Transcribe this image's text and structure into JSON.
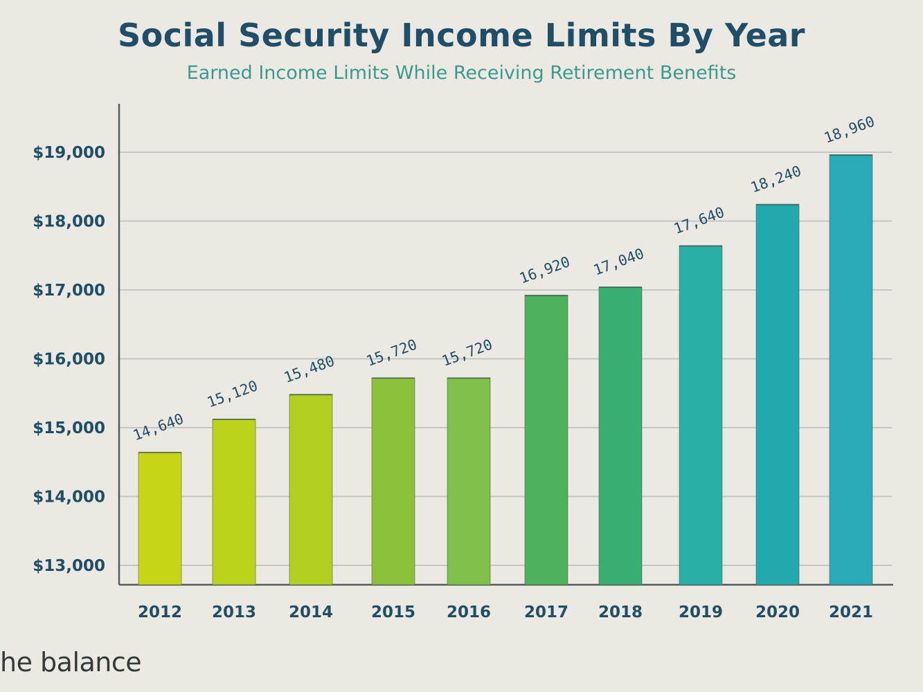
{
  "brand": "he balance",
  "chart_data": {
    "type": "bar",
    "title": "Social Security Income Limits By Year",
    "subtitle": "Earned Income Limits While Receiving Retirement Benefits",
    "xlabel": "",
    "ylabel": "",
    "categories": [
      "2012",
      "2013",
      "2014",
      "2015",
      "2016",
      "2017",
      "2018",
      "2019",
      "2020",
      "2021"
    ],
    "values": [
      14640,
      15120,
      15480,
      15720,
      15720,
      16920,
      17040,
      17640,
      18240,
      18960
    ],
    "data_labels": [
      "14,640",
      "15,120",
      "15,480",
      "15,720",
      "15,720",
      "16,920",
      "17,040",
      "17,640",
      "18,240",
      "18,960"
    ],
    "ylim": [
      12700,
      19600
    ],
    "yticks": [
      13000,
      14000,
      15000,
      16000,
      17000,
      18000,
      19000
    ],
    "ytick_labels": [
      "$13,000",
      "$14,000",
      "$15,000",
      "$16,000",
      "$17,000",
      "$18,000",
      "$19,000"
    ],
    "grid": true,
    "bar_colors": [
      "#c6d616",
      "#bcd31c",
      "#b3cf22",
      "#8bc23a",
      "#7fc04a",
      "#4fb15e",
      "#3aad73",
      "#2aafa6",
      "#22a9ae",
      "#2aa9b6"
    ],
    "axis_color": "#555d5c",
    "grid_color": "#c3c7c3"
  }
}
